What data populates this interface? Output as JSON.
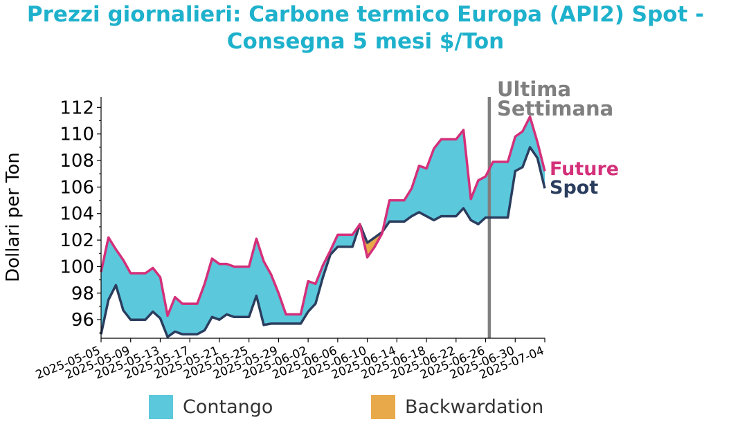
{
  "title_line1": "Prezzi giornalieri: Carbone termico Europa (API2) Spot -",
  "title_line2": "Consegna 5 mesi $/Ton",
  "colors": {
    "title": "#1eb1cc",
    "future": "#d4307a",
    "spot": "#2b3d5e",
    "contango": "#5bc8dc",
    "backwardation": "#e8a94a",
    "marker": "#7f7f7f",
    "annotation": "#7f7f7f"
  },
  "legend": {
    "contango": "Contango",
    "backwardation": "Backwardation"
  },
  "chart_data": {
    "type": "area",
    "ylabel": "Dollari per Ton",
    "xlabel": "",
    "ylim": [
      94.6,
      112.8
    ],
    "y_ticks": [
      96,
      98,
      100,
      102,
      104,
      106,
      108,
      110,
      112
    ],
    "x_range": [
      "2025-05-05",
      "2025-07-04"
    ],
    "x_tick_labels": [
      "2025-05-05",
      "2025-05-09",
      "2025-05-13",
      "2025-05-17",
      "2025-05-21",
      "2025-05-25",
      "2025-05-29",
      "2025-06-02",
      "2025-06-06",
      "2025-06-10",
      "2025-06-14",
      "2025-06-18",
      "2025-06-22",
      "2025-06-26",
      "2025-06-30",
      "2025-07-04"
    ],
    "marker": {
      "date": "2025-06-26",
      "label_line1": "Ultima",
      "label_line2": "Settimana"
    },
    "series": [
      {
        "name": "Future",
        "x": [
          "2025-05-05",
          "2025-05-06",
          "2025-05-07",
          "2025-05-08",
          "2025-05-09",
          "2025-05-10",
          "2025-05-11",
          "2025-05-12",
          "2025-05-13",
          "2025-05-14",
          "2025-05-15",
          "2025-05-16",
          "2025-05-17",
          "2025-05-18",
          "2025-05-19",
          "2025-05-20",
          "2025-05-21",
          "2025-05-22",
          "2025-05-23",
          "2025-05-24",
          "2025-05-25",
          "2025-05-26",
          "2025-05-27",
          "2025-05-28",
          "2025-05-29",
          "2025-05-30",
          "2025-05-31",
          "2025-06-01",
          "2025-06-02",
          "2025-06-03",
          "2025-06-04",
          "2025-06-05",
          "2025-06-06",
          "2025-06-07",
          "2025-06-08",
          "2025-06-09",
          "2025-06-10",
          "2025-06-11",
          "2025-06-12",
          "2025-06-13",
          "2025-06-14",
          "2025-06-15",
          "2025-06-16",
          "2025-06-17",
          "2025-06-18",
          "2025-06-19",
          "2025-06-20",
          "2025-06-21",
          "2025-06-22",
          "2025-06-23",
          "2025-06-24",
          "2025-06-25",
          "2025-06-26",
          "2025-06-27",
          "2025-06-28",
          "2025-06-29",
          "2025-06-30",
          "2025-07-01",
          "2025-07-02",
          "2025-07-03",
          "2025-07-04"
        ],
        "values": [
          99.6,
          102.2,
          101.3,
          100.5,
          99.5,
          99.5,
          99.5,
          99.9,
          99.2,
          96.3,
          97.7,
          97.2,
          97.2,
          97.2,
          98.7,
          100.6,
          100.2,
          100.2,
          100.0,
          100.0,
          100.0,
          102.1,
          100.4,
          99.4,
          98.0,
          96.4,
          96.4,
          96.4,
          98.9,
          98.7,
          100.1,
          101.2,
          102.4,
          102.4,
          102.4,
          103.2,
          100.7,
          101.5,
          102.5,
          105.0,
          105.0,
          105.0,
          105.9,
          107.6,
          107.4,
          108.9,
          109.6,
          109.6,
          109.6,
          110.3,
          105.1,
          106.5,
          106.8,
          107.9,
          107.9,
          107.9,
          109.8,
          110.2,
          111.3,
          109.4,
          107.2
        ]
      },
      {
        "name": "Spot",
        "x": [
          "2025-05-05",
          "2025-05-06",
          "2025-05-07",
          "2025-05-08",
          "2025-05-09",
          "2025-05-10",
          "2025-05-11",
          "2025-05-12",
          "2025-05-13",
          "2025-05-14",
          "2025-05-15",
          "2025-05-16",
          "2025-05-17",
          "2025-05-18",
          "2025-05-19",
          "2025-05-20",
          "2025-05-21",
          "2025-05-22",
          "2025-05-23",
          "2025-05-24",
          "2025-05-25",
          "2025-05-26",
          "2025-05-27",
          "2025-05-28",
          "2025-05-29",
          "2025-05-30",
          "2025-05-31",
          "2025-06-01",
          "2025-06-02",
          "2025-06-03",
          "2025-06-04",
          "2025-06-05",
          "2025-06-06",
          "2025-06-07",
          "2025-06-08",
          "2025-06-09",
          "2025-06-10",
          "2025-06-11",
          "2025-06-12",
          "2025-06-13",
          "2025-06-14",
          "2025-06-15",
          "2025-06-16",
          "2025-06-17",
          "2025-06-18",
          "2025-06-19",
          "2025-06-20",
          "2025-06-21",
          "2025-06-22",
          "2025-06-23",
          "2025-06-24",
          "2025-06-25",
          "2025-06-26",
          "2025-06-27",
          "2025-06-28",
          "2025-06-29",
          "2025-06-30",
          "2025-07-01",
          "2025-07-02",
          "2025-07-03",
          "2025-07-04"
        ],
        "values": [
          94.9,
          97.5,
          98.6,
          96.7,
          96.0,
          96.0,
          96.0,
          96.6,
          96.1,
          94.7,
          95.1,
          94.9,
          94.9,
          94.9,
          95.2,
          96.2,
          96.0,
          96.4,
          96.2,
          96.2,
          96.2,
          97.8,
          95.6,
          95.7,
          95.7,
          95.7,
          95.7,
          95.7,
          96.6,
          97.2,
          99.2,
          100.9,
          101.5,
          101.5,
          101.5,
          103.2,
          101.8,
          102.2,
          102.6,
          103.4,
          103.4,
          103.4,
          103.8,
          104.1,
          103.8,
          103.5,
          103.8,
          103.8,
          103.8,
          104.4,
          103.5,
          103.2,
          103.7,
          103.7,
          103.7,
          103.7,
          107.2,
          107.5,
          109.0,
          108.2,
          105.9
        ]
      }
    ]
  }
}
